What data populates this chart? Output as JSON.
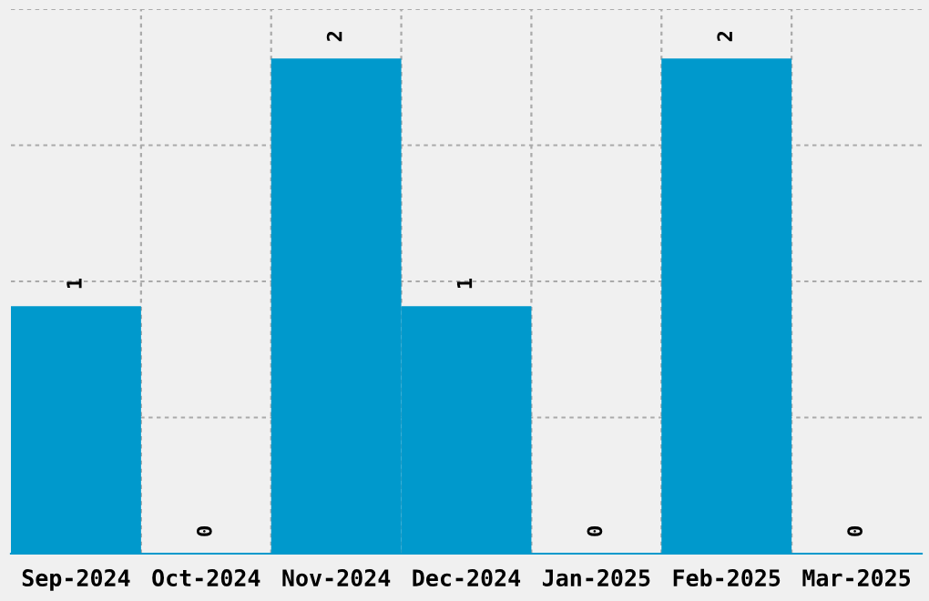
{
  "chart_data": {
    "type": "bar",
    "categories": [
      "Sep-2024",
      "Oct-2024",
      "Nov-2024",
      "Dec-2024",
      "Jan-2025",
      "Feb-2025",
      "Mar-2025"
    ],
    "values": [
      1,
      0,
      2,
      1,
      0,
      2,
      0
    ],
    "color": "#0099cc",
    "ylim": [
      0,
      2.2
    ],
    "yticks": [
      {
        "value": 0.55,
        "label": null
      },
      {
        "value": 1.1,
        "label": null
      },
      {
        "value": 1.65,
        "label": null
      },
      {
        "value": 2.2,
        "label": null
      }
    ],
    "tick_labels": "x",
    "grid": true,
    "data_labels": true
  }
}
